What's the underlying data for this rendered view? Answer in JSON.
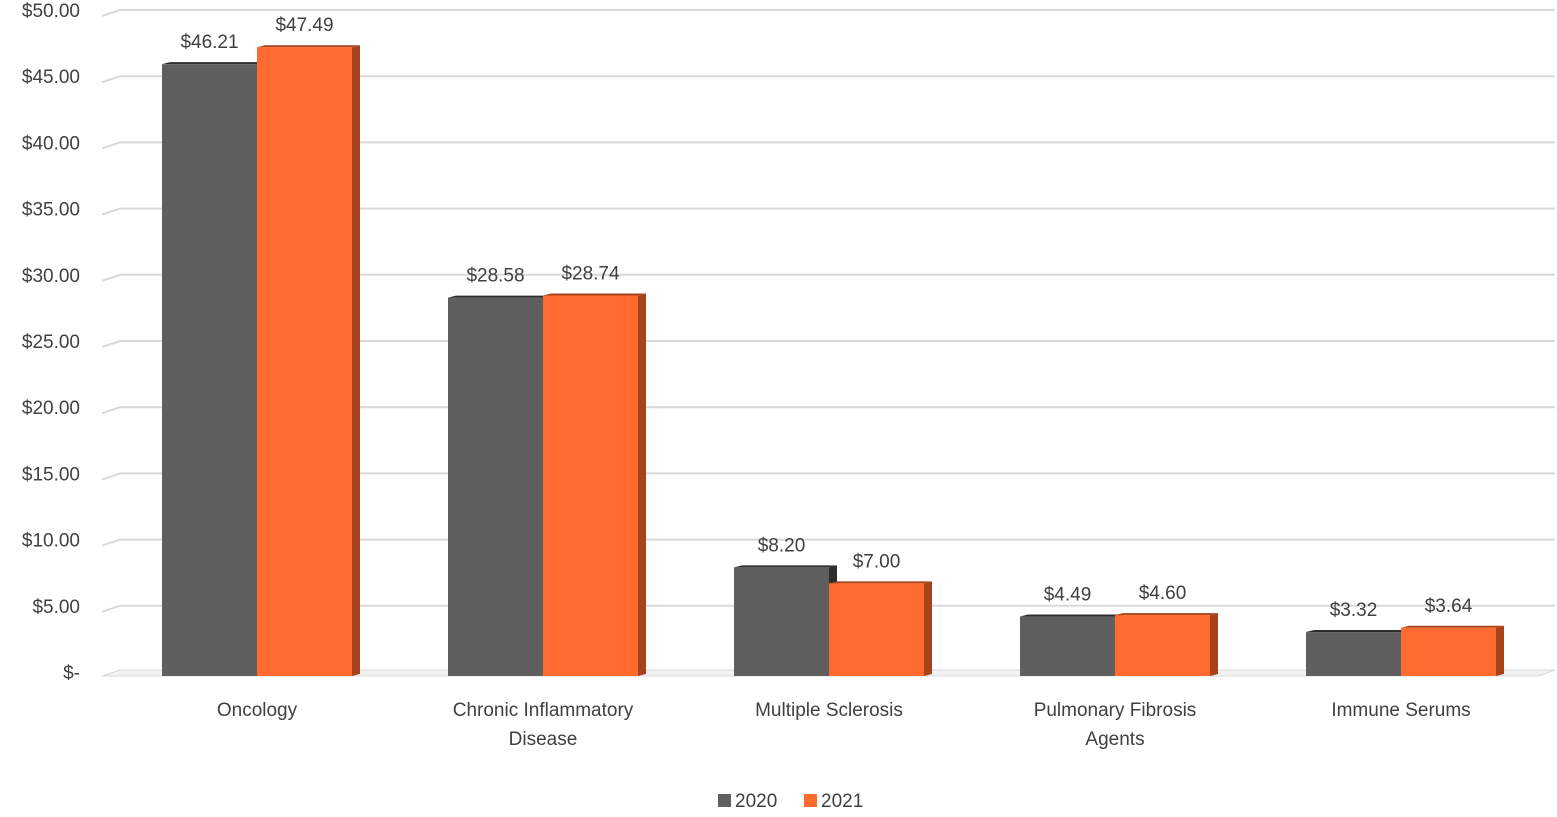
{
  "chart_data": {
    "type": "bar",
    "title": "",
    "xlabel": "",
    "ylabel": "",
    "categories": [
      [
        "Oncology"
      ],
      [
        "Chronic Inflammatory",
        "Disease"
      ],
      [
        "Multiple Sclerosis"
      ],
      [
        "Pulmonary Fibrosis",
        "Agents"
      ],
      [
        "Immune Serums"
      ]
    ],
    "series": [
      {
        "name": "2020",
        "values": [
          46.21,
          28.58,
          8.2,
          4.49,
          3.32
        ],
        "labels": [
          "$46.21",
          "$28.58",
          "$8.20",
          "$4.49",
          "$3.32"
        ],
        "color": "#5f5f5f",
        "side_color": "#2e2e2e"
      },
      {
        "name": "2021",
        "values": [
          47.49,
          28.74,
          7.0,
          4.6,
          3.64
        ],
        "labels": [
          "$47.49",
          "$28.74",
          "$7.00",
          "$4.60",
          "$3.64"
        ],
        "color": "#ff6a2f",
        "side_color": "#a8421a"
      }
    ],
    "ylim": [
      0,
      50
    ],
    "yticks": [
      0,
      5,
      10,
      15,
      20,
      25,
      30,
      35,
      40,
      45,
      50
    ],
    "ytick_labels": [
      "$-",
      "$5.00",
      "$10.00",
      "$15.00",
      "$20.00",
      "$25.00",
      "$30.00",
      "$35.00",
      "$40.00",
      "$45.00",
      "$50.00"
    ],
    "grid": true,
    "legend_position": "bottom-center"
  }
}
